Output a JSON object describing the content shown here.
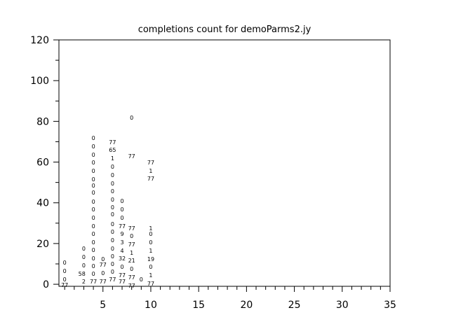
{
  "chart_data": {
    "type": "scatter",
    "title": "completions count for demoParms2.jy",
    "xlabel": "",
    "ylabel": "",
    "xlim": [
      0.4,
      35
    ],
    "ylim": [
      -1,
      120
    ],
    "xticks": [
      5,
      10,
      15,
      20,
      25,
      30,
      35
    ],
    "yticks": [
      0,
      20,
      40,
      60,
      80,
      100,
      120
    ],
    "grid": false,
    "points": [
      {
        "x": 1,
        "t": "0",
        "y": 10.7
      },
      {
        "x": 1,
        "t": "0",
        "y": 6.5
      },
      {
        "x": 1,
        "t": "0",
        "y": 2.4
      },
      {
        "x": 1,
        "t": "77",
        "y": -0.3
      },
      {
        "x": 3,
        "t": "0",
        "y": 17.5
      },
      {
        "x": 3,
        "t": "0",
        "y": 13.4
      },
      {
        "x": 3,
        "t": "0",
        "y": 9.3
      },
      {
        "x": 2.8,
        "t": "58",
        "y": 5.2
      },
      {
        "x": 3,
        "t": "2",
        "y": 1.4
      },
      {
        "x": 4,
        "t": "0",
        "y": 71.9
      },
      {
        "x": 4,
        "t": "0",
        "y": 67.7
      },
      {
        "x": 4,
        "t": "0",
        "y": 63.6
      },
      {
        "x": 4,
        "t": "0",
        "y": 59.8
      },
      {
        "x": 4,
        "t": "0",
        "y": 55.7
      },
      {
        "x": 4,
        "t": "0",
        "y": 51.6
      },
      {
        "x": 4,
        "t": "0",
        "y": 48.5
      },
      {
        "x": 4,
        "t": "0",
        "y": 45.0
      },
      {
        "x": 4,
        "t": "0",
        "y": 40.6
      },
      {
        "x": 4,
        "t": "0",
        "y": 36.8
      },
      {
        "x": 4,
        "t": "0",
        "y": 32.7
      },
      {
        "x": 4,
        "t": "0",
        "y": 28.5
      },
      {
        "x": 4,
        "t": "0",
        "y": 24.8
      },
      {
        "x": 4,
        "t": "0",
        "y": 20.6
      },
      {
        "x": 4,
        "t": "0",
        "y": 16.8
      },
      {
        "x": 4,
        "t": "0",
        "y": 12.7
      },
      {
        "x": 4,
        "t": "0",
        "y": 8.9
      },
      {
        "x": 4,
        "t": "0",
        "y": 5.2
      },
      {
        "x": 4,
        "t": "77",
        "y": 1.4
      },
      {
        "x": 5,
        "t": "0",
        "y": 12.4
      },
      {
        "x": 5,
        "t": "77",
        "y": 9.6
      },
      {
        "x": 5,
        "t": "0",
        "y": 5.5
      },
      {
        "x": 5,
        "t": "77",
        "y": 1.4
      },
      {
        "x": 6,
        "t": "77",
        "y": 69.8
      },
      {
        "x": 6,
        "t": "65",
        "y": 66.0
      },
      {
        "x": 6,
        "t": "1",
        "y": 61.9
      },
      {
        "x": 6,
        "t": "0",
        "y": 57.8
      },
      {
        "x": 6,
        "t": "0",
        "y": 53.6
      },
      {
        "x": 6,
        "t": "0",
        "y": 49.5
      },
      {
        "x": 6,
        "t": "0",
        "y": 45.7
      },
      {
        "x": 6,
        "t": "0",
        "y": 41.6
      },
      {
        "x": 6,
        "t": "0",
        "y": 37.8
      },
      {
        "x": 6,
        "t": "0",
        "y": 34.4
      },
      {
        "x": 6,
        "t": "0",
        "y": 29.6
      },
      {
        "x": 6,
        "t": "0",
        "y": 25.8
      },
      {
        "x": 6,
        "t": "0",
        "y": 21.7
      },
      {
        "x": 6,
        "t": "0",
        "y": 17.5
      },
      {
        "x": 6,
        "t": "0",
        "y": 13.8
      },
      {
        "x": 6,
        "t": "0",
        "y": 10.0
      },
      {
        "x": 6,
        "t": "0",
        "y": 6.2
      },
      {
        "x": 6,
        "t": "77",
        "y": 2.4
      },
      {
        "x": 7,
        "t": "0",
        "y": 40.9
      },
      {
        "x": 7,
        "t": "0",
        "y": 36.8
      },
      {
        "x": 7,
        "t": "0",
        "y": 32.7
      },
      {
        "x": 7,
        "t": "77",
        "y": 28.5
      },
      {
        "x": 7,
        "t": "9",
        "y": 24.8
      },
      {
        "x": 7,
        "t": "3",
        "y": 20.6
      },
      {
        "x": 7,
        "t": "4",
        "y": 16.5
      },
      {
        "x": 7,
        "t": "32",
        "y": 12.7
      },
      {
        "x": 7,
        "t": "0",
        "y": 8.6
      },
      {
        "x": 7,
        "t": "77",
        "y": 4.5
      },
      {
        "x": 7,
        "t": "77",
        "y": 1.4
      },
      {
        "x": 8,
        "t": "0",
        "y": 81.8
      },
      {
        "x": 8,
        "t": "77",
        "y": 62.9
      },
      {
        "x": 8,
        "t": "77",
        "y": 27.5
      },
      {
        "x": 8,
        "t": "0",
        "y": 23.7
      },
      {
        "x": 8,
        "t": "77",
        "y": 19.6
      },
      {
        "x": 8,
        "t": "1",
        "y": 15.5
      },
      {
        "x": 8,
        "t": "21",
        "y": 11.7
      },
      {
        "x": 8,
        "t": "0",
        "y": 7.6
      },
      {
        "x": 8,
        "t": "77",
        "y": 3.4
      },
      {
        "x": 8,
        "t": "77",
        "y": -0.7
      },
      {
        "x": 9,
        "t": "0",
        "y": 2.4
      },
      {
        "x": 10,
        "t": "77",
        "y": 59.8
      },
      {
        "x": 10,
        "t": "1",
        "y": 55.7
      },
      {
        "x": 10,
        "t": "77",
        "y": 51.9
      },
      {
        "x": 10,
        "t": "1",
        "y": 27.5
      },
      {
        "x": 10,
        "t": "0",
        "y": 24.8
      },
      {
        "x": 10,
        "t": "0",
        "y": 20.6
      },
      {
        "x": 10,
        "t": "1",
        "y": 16.5
      },
      {
        "x": 10,
        "t": "19",
        "y": 12.4
      },
      {
        "x": 10,
        "t": "0",
        "y": 8.6
      },
      {
        "x": 10,
        "t": "1",
        "y": 4.5
      },
      {
        "x": 10,
        "t": "77",
        "y": 0.3
      }
    ]
  }
}
